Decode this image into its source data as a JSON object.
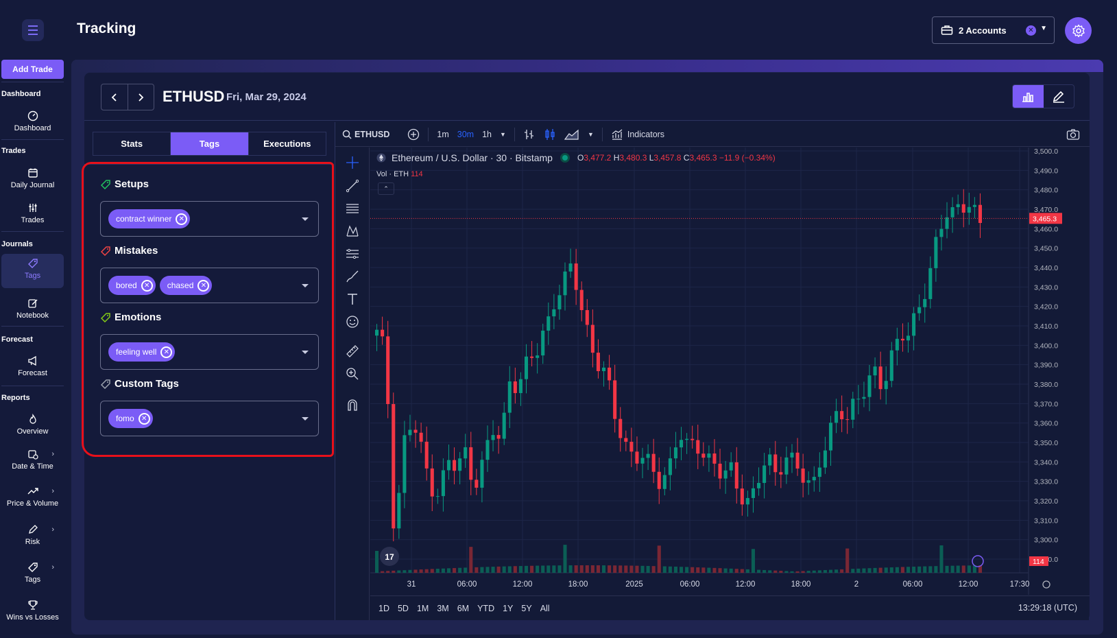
{
  "app": {
    "title": "Tracking",
    "add_trade": "Add Trade"
  },
  "sidebar": {
    "sections": [
      {
        "header": "Dashboard",
        "items": [
          {
            "label": "Dashboard",
            "icon": "gauge-icon"
          }
        ]
      },
      {
        "header": "Trades",
        "items": [
          {
            "label": "Daily Journal",
            "icon": "calendar-icon"
          },
          {
            "label": "Trades",
            "icon": "sliders-icon"
          }
        ]
      },
      {
        "header": "Journals",
        "items": [
          {
            "label": "Tags",
            "icon": "tag-icon",
            "active": true
          },
          {
            "label": "Notebook",
            "icon": "pencil-icon"
          }
        ]
      },
      {
        "header": "Forecast",
        "items": [
          {
            "label": "Forecast",
            "icon": "megaphone-icon"
          }
        ]
      },
      {
        "header": "Reports",
        "items": [
          {
            "label": "Overview",
            "icon": "flame-icon"
          },
          {
            "label": "Date & Time",
            "icon": "calendar-clock-icon"
          },
          {
            "label": "Price & Volume",
            "icon": "trend-icon"
          },
          {
            "label": "Risk",
            "icon": "pen-icon"
          },
          {
            "label": "Tags",
            "icon": "tag-icon"
          },
          {
            "label": "Wins vs Losses",
            "icon": "trophy-icon"
          }
        ]
      }
    ]
  },
  "accounts": {
    "label": "2 Accounts"
  },
  "trade": {
    "symbol": "ETHUSD",
    "date": "Fri, Mar 29, 2024"
  },
  "tabs": [
    {
      "label": "Stats"
    },
    {
      "label": "Tags",
      "active": true
    },
    {
      "label": "Executions"
    }
  ],
  "tag_groups": [
    {
      "title": "Setups",
      "icon_color": "#22c55e",
      "tags": [
        "contract winner"
      ]
    },
    {
      "title": "Mistakes",
      "icon_color": "#ef4444",
      "tags": [
        "bored",
        "chased"
      ]
    },
    {
      "title": "Emotions",
      "icon_color": "#84cc16",
      "tags": [
        "feeling well"
      ]
    },
    {
      "title": "Custom Tags",
      "icon_color": "#9ca3af",
      "tags": [
        "fomo"
      ]
    }
  ],
  "tv": {
    "search_symbol": "ETHUSD",
    "intervals": [
      "1m",
      "30m",
      "1h"
    ],
    "active_interval": "30m",
    "indicators": "Indicators",
    "legend_title": "Ethereum / U.S. Dollar · 30 · Bitstamp",
    "ohlc": {
      "o": "3,477.2",
      "h": "3,480.3",
      "l": "3,457.8",
      "c": "3,465.3",
      "chg": "−11.9 (−0.34%)"
    },
    "vol_label": "Vol · ETH",
    "vol_value": "114",
    "price_label": "3,465.3",
    "vol_badge": "114",
    "ranges": [
      "1D",
      "5D",
      "1M",
      "3M",
      "6M",
      "YTD",
      "1Y",
      "5Y",
      "All"
    ],
    "clock": "13:29:18 (UTC)"
  },
  "chart_data": {
    "type": "candlestick",
    "y_ticks": [
      "3,500.0",
      "3,490.0",
      "3,480.0",
      "3,470.0",
      "3,460.0",
      "3,450.0",
      "3,440.0",
      "3,430.0",
      "3,420.0",
      "3,410.0",
      "3,400.0",
      "3,390.0",
      "3,380.0",
      "3,370.0",
      "3,360.0",
      "3,350.0",
      "3,340.0",
      "3,330.0",
      "3,320.0",
      "3,310.0",
      "3,300.0",
      "3,290.0"
    ],
    "x_ticks": [
      "31",
      "06:00",
      "12:00",
      "18:00",
      "2025",
      "06:00",
      "12:00",
      "18:00",
      "2",
      "06:00",
      "12:00",
      "17:30"
    ],
    "ylim": [
      3290,
      3500
    ],
    "up_color": "#089981",
    "down_color": "#f23645",
    "close_path": [
      3405,
      3395,
      3300,
      3350,
      3360,
      3345,
      3330,
      3325,
      3340,
      3335,
      3345,
      3330,
      3340,
      3355,
      3350,
      3385,
      3380,
      3390,
      3395,
      3410,
      3425,
      3430,
      3440,
      3420,
      3405,
      3390,
      3380,
      3360,
      3350,
      3345,
      3340,
      3335,
      3330,
      3340,
      3355,
      3345,
      3350,
      3345,
      3340,
      3330,
      3335,
      3325,
      3320,
      3330,
      3340,
      3335,
      3345,
      3340,
      3330,
      3325,
      3345,
      3355,
      3365,
      3360,
      3375,
      3380,
      3385,
      3375,
      3395,
      3410,
      3405,
      3415,
      3430,
      3455,
      3470,
      3465,
      3470,
      3475,
      3465
    ]
  }
}
